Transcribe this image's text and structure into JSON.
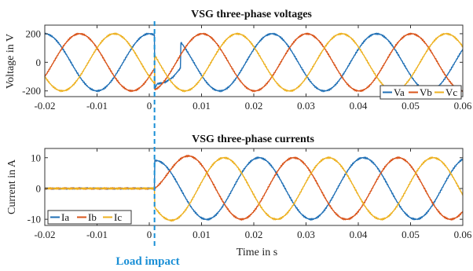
{
  "chart_data": [
    {
      "type": "line",
      "title": "VSG three-phase voltages",
      "xlabel": "",
      "ylabel": "Voltage in V",
      "xlim": [
        -0.02,
        0.06
      ],
      "ylim": [
        -240,
        260
      ],
      "grid": false,
      "legend_position": "bottom-right",
      "x_ticks": [
        -0.02,
        -0.01,
        0,
        0.01,
        0.02,
        0.03,
        0.04,
        0.05,
        0.06
      ],
      "x_tick_labels": [
        "-0.02",
        "-0.01",
        "0",
        "0.01",
        "0.02",
        "0.03",
        "0.04",
        "0.05",
        "0.06"
      ],
      "y_ticks": [
        -200,
        0,
        200
      ],
      "y_tick_labels": [
        "-200",
        "0",
        "200"
      ],
      "frequency_hz": 50,
      "series": [
        {
          "name": "Va",
          "color": "#1f6fb5",
          "pre_event": {
            "amplitude": 200,
            "phase_deg": 0
          },
          "post_event": {
            "amplitude": 200,
            "phase_deg": -45
          },
          "transient_points": [
            [
              0.001,
              -190
            ],
            [
              0.0015,
              -150
            ],
            [
              0.003,
              -140
            ],
            [
              0.0045,
              -105
            ],
            [
              0.006,
              -40
            ]
          ]
        },
        {
          "name": "Vb",
          "color": "#d9541a",
          "pre_event": {
            "amplitude": 200,
            "phase_deg": -120
          },
          "post_event": {
            "amplitude": 200,
            "phase_deg": -165
          },
          "transient_points": []
        },
        {
          "name": "Vc",
          "color": "#edb120",
          "pre_event": {
            "amplitude": 200,
            "phase_deg": 120
          },
          "post_event": {
            "amplitude": 200,
            "phase_deg": 75
          },
          "transient_points": []
        }
      ]
    },
    {
      "type": "line",
      "title": "VSG three-phase currents",
      "xlabel": "Time in s",
      "ylabel": "Current in A",
      "xlim": [
        -0.02,
        0.06
      ],
      "ylim": [
        -12,
        13
      ],
      "grid": false,
      "legend_position": "bottom-left",
      "x_ticks": [
        -0.02,
        -0.01,
        0,
        0.01,
        0.02,
        0.03,
        0.04,
        0.05,
        0.06
      ],
      "x_tick_labels": [
        "-0.02",
        "-0.01",
        "0",
        "0.01",
        "0.02",
        "0.03",
        "0.04",
        "0.05",
        "0.06"
      ],
      "y_ticks": [
        -10,
        0,
        10
      ],
      "y_tick_labels": [
        "-10",
        "0",
        "10"
      ],
      "frequency_hz": 50,
      "series": [
        {
          "name": "Ia",
          "color": "#1f6fb5",
          "pre_event": {
            "amplitude": 0
          },
          "post_event": {
            "amplitude": 10,
            "phase_deg": 0,
            "offset_start": 9,
            "offset_tau": 0.003
          },
          "transient_points": []
        },
        {
          "name": "Ib",
          "color": "#d9541a",
          "pre_event": {
            "amplitude": 0
          },
          "post_event": {
            "amplitude": 10,
            "phase_deg": -120,
            "offset_start": 0,
            "offset_tau": 0.003
          },
          "transient_points": []
        },
        {
          "name": "Ic",
          "color": "#edb120",
          "pre_event": {
            "amplitude": 0
          },
          "post_event": {
            "amplitude": 10,
            "phase_deg": 120,
            "offset_start": -6,
            "offset_tau": 0.003
          },
          "transient_points": []
        }
      ]
    }
  ],
  "annotation": {
    "text": "Load impact",
    "x": 0.001,
    "color": "#1a8fd6"
  }
}
